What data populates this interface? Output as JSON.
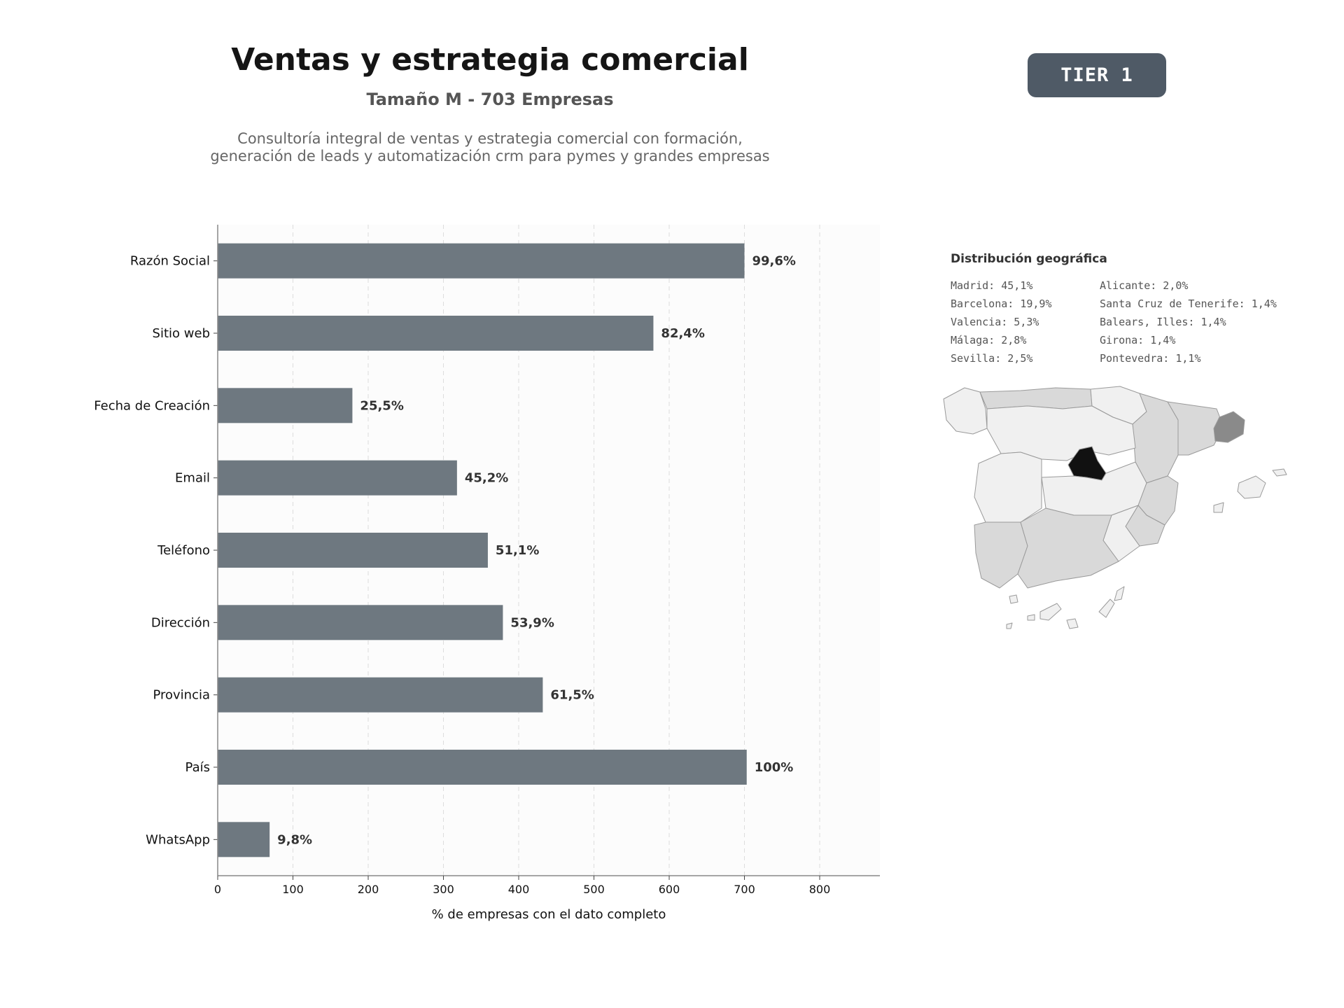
{
  "header": {
    "title": "Ventas y estrategia comercial",
    "subtitle": "Tamaño M - 703 Empresas",
    "description_line1": "Consultoría integral de ventas y estrategia comercial con formación,",
    "description_line2": "generación de leads y automatización crm para pymes y grandes empresas",
    "tier_badge": "TIER 1"
  },
  "colors": {
    "bar": "#6e7880",
    "badge": "#4f5a66",
    "plot_bg": "#fcfcfc",
    "map_fill_light": "#f0f0f0",
    "map_fill_medium": "#d9d9d9",
    "map_fill_dark": "#8a8a8a",
    "map_fill_max": "#111111"
  },
  "chart_data": {
    "type": "bar",
    "orientation": "horizontal",
    "categories": [
      "Razón Social",
      "Sitio web",
      "Fecha de Creación",
      "Email",
      "Teléfono",
      "Dirección",
      "Provincia",
      "País",
      "WhatsApp"
    ],
    "values": [
      700,
      579,
      179,
      318,
      359,
      379,
      432,
      703,
      69
    ],
    "data_labels": [
      "99,6%",
      "82,4%",
      "25,5%",
      "45,2%",
      "51,1%",
      "53,9%",
      "61,5%",
      "100%",
      "9,8%"
    ],
    "xlabel": "% de empresas con el dato completo",
    "xlim": [
      0,
      880
    ],
    "xticks": [
      0,
      100,
      200,
      300,
      400,
      500,
      600,
      700,
      800
    ],
    "grid": "vertical dashed"
  },
  "geo": {
    "title": "Distribución geográfica",
    "col1": [
      "Madrid: 45,1%",
      "Barcelona: 19,9%",
      "Valencia: 5,3%",
      "Málaga: 2,8%",
      "Sevilla: 2,5%"
    ],
    "col2": [
      "Alicante: 2,0%",
      "Santa Cruz de Tenerife: 1,4%",
      "Balears, Illes: 1,4%",
      "Girona: 1,4%",
      "Pontevedra: 1,1%"
    ]
  }
}
